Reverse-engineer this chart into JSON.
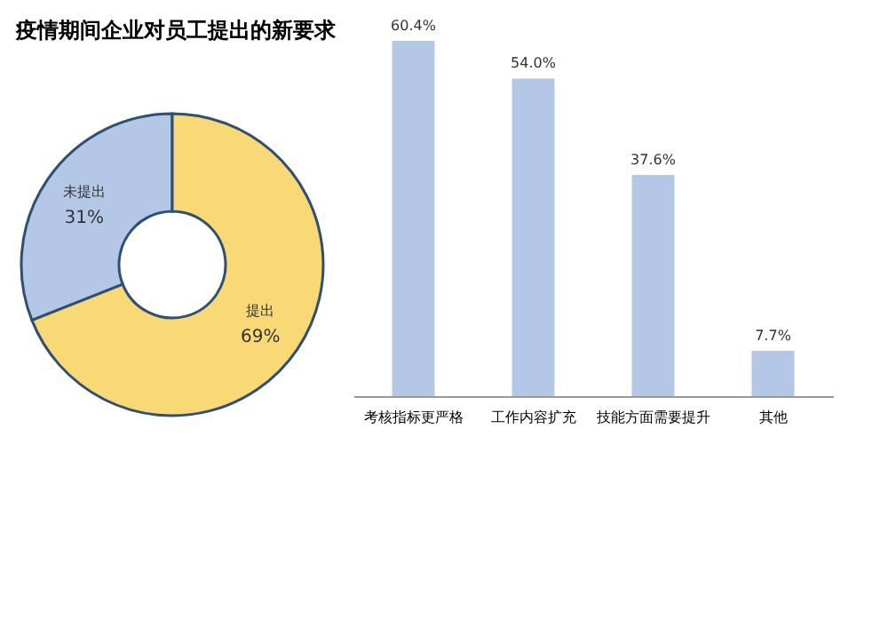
{
  "chart_data": [
    {
      "type": "donut",
      "title": "疫情期间企业对员工提出的新要求",
      "categories": [
        "未提出",
        "提出"
      ],
      "values": [
        31,
        69
      ],
      "colors": [
        "#b4c7e7",
        "#f9d976"
      ],
      "value_labels": [
        "31%",
        "69%"
      ]
    },
    {
      "type": "bar",
      "categories": [
        "考核指标更严格",
        "工作内容扩充",
        "技能方面需要提升",
        "其他"
      ],
      "values": [
        60.4,
        54.0,
        37.6,
        7.7
      ],
      "color": "#b4c7e7",
      "value_labels": [
        "60.4%",
        "54.0%",
        "37.6%",
        "7.7%"
      ]
    }
  ]
}
